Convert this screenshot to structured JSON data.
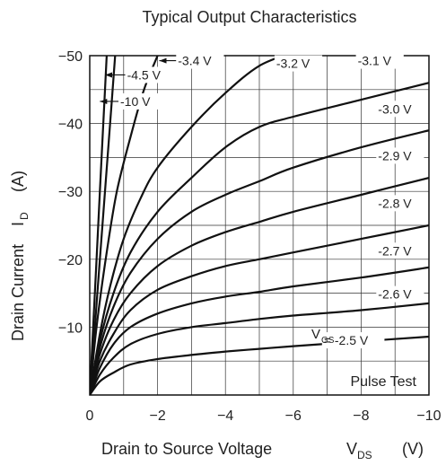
{
  "chart_data": {
    "type": "line",
    "title": "Typical Output Characteristics",
    "xlabel": "Drain to Source Voltage",
    "xlabel_symbol": "V",
    "xlabel_sub": "DS",
    "xlabel_unit": "(V)",
    "ylabel": "Drain Current",
    "ylabel_symbol": "I",
    "ylabel_sub": "D",
    "ylabel_unit": "(A)",
    "xlim": [
      0,
      -10
    ],
    "ylim": [
      0,
      -50
    ],
    "x_ticks": [
      0,
      -2,
      -4,
      -6,
      -8,
      -10
    ],
    "x_tick_labels": [
      "0",
      "−2",
      "−4",
      "−6",
      "−8",
      "−10"
    ],
    "y_ticks": [
      -10,
      -20,
      -30,
      -40,
      -50
    ],
    "y_tick_labels": [
      "−10",
      "−20",
      "−30",
      "−40",
      "−50"
    ],
    "grid": true,
    "annotation": "Pulse Test",
    "vgs_prefix": "V",
    "vgs_sub": "GS",
    "series": [
      {
        "name": "-10 V",
        "x": [
          0,
          -0.1,
          -0.2,
          -0.3,
          -0.4,
          -0.5
        ],
        "y": [
          0,
          -10,
          -20,
          -30,
          -40,
          -50
        ]
      },
      {
        "name": "-4.5 V",
        "x": [
          0,
          -0.15,
          -0.3,
          -0.45,
          -0.6,
          -0.75
        ],
        "y": [
          0,
          -10,
          -20,
          -30,
          -40,
          -50
        ]
      },
      {
        "name": "-3.4 V",
        "x": [
          0,
          -0.2,
          -0.5,
          -0.8,
          -1.2,
          -1.6,
          -2.0
        ],
        "y": [
          0,
          -10,
          -21,
          -30,
          -38,
          -45,
          -50
        ]
      },
      {
        "name": "-3.2 V",
        "x": [
          0,
          -0.3,
          -0.6,
          -1.0,
          -1.5,
          -2.0,
          -3.0,
          -4.0,
          -5.0,
          -6.0
        ],
        "y": [
          0,
          -9,
          -16,
          -23,
          -29,
          -33.5,
          -39.5,
          -44.5,
          -48.5,
          -50.5
        ]
      },
      {
        "name": "-3.1 V",
        "x": [
          0,
          -0.3,
          -0.7,
          -1.2,
          -2.0,
          -3.0,
          -4.0,
          -5.0,
          -6.0,
          -8.0,
          -10.0
        ],
        "y": [
          0,
          -8,
          -15,
          -21,
          -27,
          -32,
          -36.5,
          -39.5,
          -41,
          -43.5,
          -46
        ]
      },
      {
        "name": "-3.0 V",
        "x": [
          0,
          -0.3,
          -0.7,
          -1.2,
          -2.0,
          -3.0,
          -4.0,
          -5.0,
          -6.0,
          -8.0,
          -10.0
        ],
        "y": [
          0,
          -7,
          -13,
          -18,
          -23,
          -27,
          -29.5,
          -31.5,
          -33.5,
          -36.5,
          -39
        ]
      },
      {
        "name": "-2.9 V",
        "x": [
          0,
          -0.3,
          -0.7,
          -1.2,
          -2.0,
          -3.0,
          -4.0,
          -5.0,
          -6.0,
          -8.0,
          -10.0
        ],
        "y": [
          0,
          -6,
          -11,
          -15,
          -19,
          -22,
          -24,
          -25.5,
          -27,
          -29.5,
          -32
        ]
      },
      {
        "name": "-2.8 V",
        "x": [
          0,
          -0.3,
          -0.7,
          -1.2,
          -2.0,
          -3.0,
          -4.0,
          -5.0,
          -6.0,
          -8.0,
          -10.0
        ],
        "y": [
          0,
          -5,
          -9,
          -12.5,
          -15.5,
          -17.5,
          -19,
          -20,
          -21,
          -23,
          -25
        ]
      },
      {
        "name": "-2.7 V",
        "x": [
          0,
          -0.3,
          -0.7,
          -1.2,
          -2.0,
          -3.0,
          -4.0,
          -5.0,
          -6.0,
          -8.0,
          -10.0
        ],
        "y": [
          0,
          -4,
          -7.5,
          -10,
          -12,
          -13.5,
          -14.5,
          -15.2,
          -16,
          -17.3,
          -18.8
        ]
      },
      {
        "name": "-2.6 V",
        "x": [
          0,
          -0.3,
          -0.7,
          -1.2,
          -2.0,
          -3.0,
          -4.0,
          -5.0,
          -6.0,
          -8.0,
          -10.0
        ],
        "y": [
          0,
          -3,
          -5.5,
          -7.5,
          -9,
          -10,
          -10.6,
          -11.2,
          -11.7,
          -12.5,
          -13.5
        ]
      },
      {
        "name": "-2.5 V",
        "x": [
          0,
          -0.3,
          -0.7,
          -1.2,
          -2.0,
          -3.0,
          -4.0,
          -5.0,
          -6.0,
          -8.0,
          -10.0
        ],
        "y": [
          0,
          -2,
          -3.3,
          -4.5,
          -5.3,
          -5.9,
          -6.4,
          -6.8,
          -7.2,
          -7.9,
          -8.6
        ]
      }
    ],
    "curve_labels": [
      {
        "text": "-3.4 V",
        "x": -2.6,
        "y": -48.6
      },
      {
        "text": "-4.5 V",
        "x": -1.1,
        "y": -46.5
      },
      {
        "text": "-10 V",
        "x": -0.9,
        "y": -42.6
      },
      {
        "text": "-3.2 V",
        "x": -5.5,
        "y": -48.2
      },
      {
        "text": "-3.1 V",
        "x": -7.9,
        "y": -48.6
      },
      {
        "text": "-3.0 V",
        "x": -8.5,
        "y": -41.5
      },
      {
        "text": "-2.9 V",
        "x": -8.5,
        "y": -34.6
      },
      {
        "text": "-2.8 V",
        "x": -8.5,
        "y": -27.6
      },
      {
        "text": "-2.7 V",
        "x": -8.5,
        "y": -20.6
      },
      {
        "text": "-2.6 V",
        "x": -8.5,
        "y": -14.2
      },
      {
        "text": "= -2.5 V",
        "x": -6.9,
        "y": -7.4
      }
    ]
  }
}
